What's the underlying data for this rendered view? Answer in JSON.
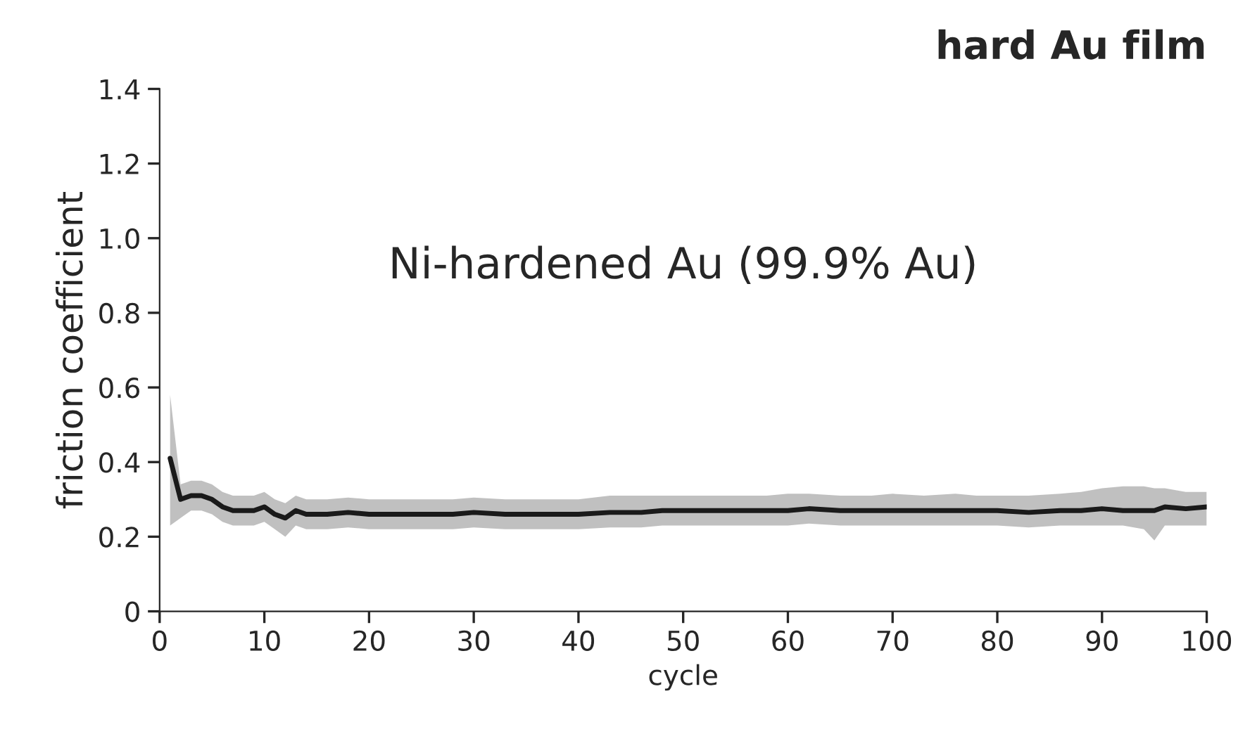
{
  "chart_data": {
    "type": "line",
    "title": "hard Au film",
    "xlabel": "cycle",
    "ylabel": "friction coefficient",
    "annotations": [
      "Ni-hardened Au (99.9% Au)"
    ],
    "xlim": [
      0,
      100
    ],
    "xticks": [
      0,
      10,
      20,
      30,
      40,
      50,
      60,
      70,
      80,
      90,
      100
    ],
    "ylim": [
      0,
      1.4
    ],
    "yticks": [
      0,
      0.2,
      0.4,
      0.6,
      0.8,
      {
        "value": 1.0,
        "label": "1.0"
      },
      1.2,
      1.4
    ],
    "grid": false,
    "legend": false,
    "marker": "none",
    "line_style": "solid",
    "series": [
      {
        "color": "#1a1a1a",
        "x": [
          1,
          2,
          3,
          4,
          5,
          6,
          7,
          8,
          9,
          10,
          11,
          12,
          13,
          14,
          15,
          16,
          18,
          20,
          23,
          26,
          28,
          30,
          33,
          36,
          38,
          40,
          43,
          46,
          48,
          50,
          53,
          56,
          58,
          60,
          62,
          65,
          68,
          70,
          73,
          76,
          78,
          80,
          83,
          86,
          88,
          90,
          92,
          94,
          95,
          96,
          98,
          100
        ],
        "values": [
          0.41,
          0.3,
          0.31,
          0.31,
          0.3,
          0.28,
          0.27,
          0.27,
          0.27,
          0.28,
          0.26,
          0.25,
          0.27,
          0.26,
          0.26,
          0.26,
          0.265,
          0.26,
          0.26,
          0.26,
          0.26,
          0.265,
          0.26,
          0.26,
          0.26,
          0.26,
          0.265,
          0.265,
          0.27,
          0.27,
          0.27,
          0.27,
          0.27,
          0.27,
          0.275,
          0.27,
          0.27,
          0.27,
          0.27,
          0.27,
          0.27,
          0.27,
          0.265,
          0.27,
          0.27,
          0.275,
          0.27,
          0.27,
          0.27,
          0.28,
          0.275,
          0.28
        ],
        "lower": [
          0.23,
          0.25,
          0.27,
          0.27,
          0.26,
          0.24,
          0.23,
          0.23,
          0.23,
          0.24,
          0.22,
          0.2,
          0.23,
          0.22,
          0.22,
          0.22,
          0.225,
          0.22,
          0.22,
          0.22,
          0.22,
          0.225,
          0.22,
          0.22,
          0.22,
          0.22,
          0.225,
          0.225,
          0.23,
          0.23,
          0.23,
          0.23,
          0.23,
          0.23,
          0.235,
          0.23,
          0.23,
          0.23,
          0.23,
          0.23,
          0.23,
          0.23,
          0.225,
          0.23,
          0.23,
          0.23,
          0.23,
          0.22,
          0.19,
          0.23,
          0.23,
          0.23
        ],
        "upper": [
          0.58,
          0.34,
          0.35,
          0.35,
          0.34,
          0.32,
          0.31,
          0.31,
          0.31,
          0.32,
          0.3,
          0.29,
          0.31,
          0.3,
          0.3,
          0.3,
          0.305,
          0.3,
          0.3,
          0.3,
          0.3,
          0.305,
          0.3,
          0.3,
          0.3,
          0.3,
          0.31,
          0.31,
          0.31,
          0.31,
          0.31,
          0.31,
          0.31,
          0.315,
          0.315,
          0.31,
          0.31,
          0.315,
          0.31,
          0.315,
          0.31,
          0.31,
          0.31,
          0.315,
          0.32,
          0.33,
          0.335,
          0.335,
          0.33,
          0.33,
          0.32,
          0.32
        ]
      }
    ]
  }
}
